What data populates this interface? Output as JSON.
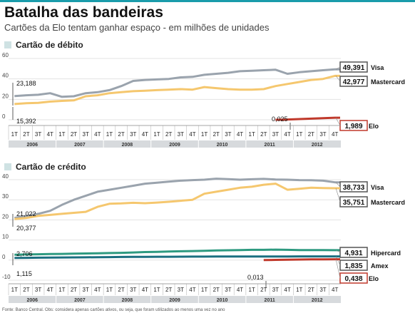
{
  "header": {
    "title": "Batalha das bandeiras",
    "subtitle": "Cartões da Elo tentam ganhar espaço - em milhões de unidades"
  },
  "footnote": "Fonte: Banco Central. Obs: considera apenas cartões ativos, ou seja, que foram utilizados ao menos uma vez no ano",
  "colors": {
    "visa": "#9aa3ad",
    "mastercard": "#f5c76e",
    "elo": "#c0392b",
    "hipercard": "#2e9a80",
    "amex": "#1a6f80",
    "accent": "#1a9cab"
  },
  "chart_data": [
    {
      "type": "line",
      "title": "Cartão de débito",
      "quarters": [
        "1T",
        "2T",
        "3T",
        "4T",
        "1T",
        "2T",
        "3T",
        "4T",
        "1T",
        "2T",
        "3T",
        "4T",
        "1T",
        "2T",
        "3T",
        "4T",
        "1T",
        "2T",
        "3T",
        "4T",
        "1T",
        "2T",
        "3T",
        "4T",
        "1T",
        "2T",
        "3T",
        "4T"
      ],
      "years": [
        "2006",
        "2007",
        "2008",
        "2009",
        "2010",
        "2011",
        "2012"
      ],
      "ylim": [
        0,
        60
      ],
      "yticks": [
        0,
        20,
        40,
        60
      ],
      "start_labels": [
        "23,188",
        "15,392"
      ],
      "annotations": [
        "0,025"
      ],
      "series": [
        {
          "name": "Visa",
          "end_label": "49,391",
          "color": "#9aa3ad",
          "values": [
            23.2,
            24,
            24.5,
            26,
            22.5,
            23,
            26,
            27,
            29,
            33,
            38,
            39,
            39.5,
            40,
            41.5,
            42,
            44,
            45,
            46,
            47.5,
            48,
            48.5,
            49,
            45,
            46.5,
            47.5,
            48.5,
            49.4
          ]
        },
        {
          "name": "Mastercard",
          "end_label": "42,977",
          "color": "#f5c76e",
          "values": [
            15.4,
            16.2,
            16.5,
            17.8,
            18.5,
            19,
            23,
            24,
            26,
            27,
            28,
            28.5,
            29,
            29.5,
            30,
            29.5,
            32,
            31,
            30,
            29.5,
            29.5,
            30,
            33,
            35,
            37,
            39,
            40,
            43
          ]
        },
        {
          "name": "Elo",
          "end_label": "1,989",
          "color": "#c0392b",
          "values": [
            null,
            null,
            null,
            null,
            null,
            null,
            null,
            null,
            null,
            null,
            null,
            null,
            null,
            null,
            null,
            null,
            null,
            null,
            null,
            null,
            null,
            null,
            0.025,
            0.3,
            0.7,
            1.1,
            1.5,
            1.99
          ]
        }
      ]
    },
    {
      "type": "line",
      "title": "Cartão de crédito",
      "quarters": [
        "1T",
        "2T",
        "3T",
        "4T",
        "1T",
        "2T",
        "3T",
        "4T",
        "1T",
        "2T",
        "3T",
        "4T",
        "1T",
        "2T",
        "3T",
        "4T",
        "1T",
        "2T",
        "3T",
        "4T",
        "1T",
        "2T",
        "3T",
        "4T",
        "1T",
        "2T",
        "3T",
        "4T"
      ],
      "years": [
        "2006",
        "2007",
        "2008",
        "2009",
        "2010",
        "2011",
        "2012"
      ],
      "ylim": [
        -10,
        40
      ],
      "yticks": [
        -10,
        0,
        10,
        20,
        30,
        40
      ],
      "start_labels": [
        "21,022",
        "20,377",
        "2,706",
        "1,115"
      ],
      "annotations": [
        "0,013"
      ],
      "series": [
        {
          "name": "Visa",
          "end_label": "38,733",
          "color": "#9aa3ad",
          "values": [
            21,
            22,
            23,
            24.5,
            27.5,
            30,
            32,
            34,
            35,
            36,
            37,
            38,
            38.5,
            39,
            39.5,
            39.8,
            40,
            40.5,
            40.3,
            40,
            40.2,
            40.4,
            40.1,
            40,
            39.8,
            39.7,
            39.5,
            38.7
          ]
        },
        {
          "name": "Mastercard",
          "end_label": "35,751",
          "color": "#f5c76e",
          "values": [
            20.4,
            21,
            22,
            22.5,
            23,
            23.5,
            24,
            26.5,
            28,
            28.2,
            28.5,
            28.3,
            28.6,
            29,
            29.5,
            30,
            33,
            34,
            35,
            36,
            36.5,
            37.5,
            38,
            35,
            35.5,
            36,
            35.8,
            35.75
          ]
        },
        {
          "name": "Hipercard",
          "end_label": "4,931",
          "color": "#2e9a80",
          "values": [
            2.7,
            2.8,
            2.9,
            3,
            3.1,
            3.2,
            3.3,
            3.4,
            3.5,
            3.6,
            3.8,
            4,
            4.1,
            4.3,
            4.4,
            4.5,
            4.6,
            4.8,
            4.9,
            5,
            5.1,
            5.1,
            5.2,
            5.1,
            5,
            5,
            4.95,
            4.93
          ]
        },
        {
          "name": "Amex",
          "end_label": "1,835",
          "color": "#1a6f80",
          "values": [
            1.1,
            1.15,
            1.2,
            1.25,
            1.3,
            1.35,
            1.4,
            1.45,
            1.5,
            1.55,
            1.6,
            1.62,
            1.65,
            1.68,
            1.7,
            1.72,
            1.74,
            1.76,
            1.78,
            1.79,
            1.8,
            1.81,
            1.82,
            1.82,
            1.83,
            1.83,
            1.835,
            1.835
          ]
        },
        {
          "name": "Elo",
          "end_label": "0,438",
          "color": "#c0392b",
          "values": [
            null,
            null,
            null,
            null,
            null,
            null,
            null,
            null,
            null,
            null,
            null,
            null,
            null,
            null,
            null,
            null,
            null,
            null,
            null,
            null,
            null,
            0.013,
            0.1,
            0.2,
            0.28,
            0.34,
            0.4,
            0.44
          ]
        }
      ]
    }
  ]
}
